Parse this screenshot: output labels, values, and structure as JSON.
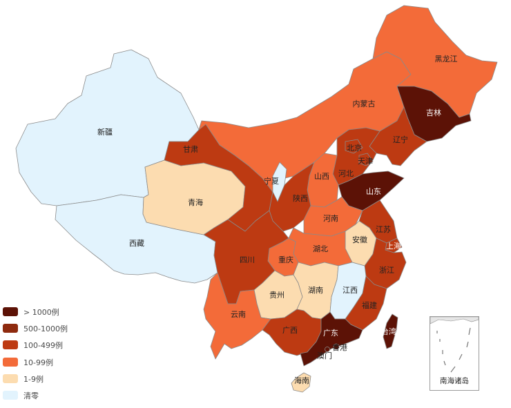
{
  "colors": {
    "gt1000": "#5c1206",
    "r500_1000": "#8e2a0e",
    "r100_499": "#bd3a12",
    "r10_99": "#f36b39",
    "r1_9": "#fcdcb0",
    "cleared": "#e2f3fd"
  },
  "legend": [
    {
      "label": "> 1000例",
      "color": "#5c1206"
    },
    {
      "label": "500-1000例",
      "color": "#8e2a0e"
    },
    {
      "label": "100-499例",
      "color": "#bd3a12"
    },
    {
      "label": "10-99例",
      "color": "#f36b39"
    },
    {
      "label": "1-9例",
      "color": "#fcdcb0"
    },
    {
      "label": "清零",
      "color": "#e2f3fd"
    }
  ],
  "provinces": [
    {
      "name": "新疆",
      "category": "cleared"
    },
    {
      "name": "西藏",
      "category": "cleared"
    },
    {
      "name": "青海",
      "category": "r1_9"
    },
    {
      "name": "甘肃",
      "category": "r100_499"
    },
    {
      "name": "内蒙古",
      "category": "r10_99"
    },
    {
      "name": "黑龙江",
      "category": "r10_99"
    },
    {
      "name": "吉林",
      "category": "gt1000"
    },
    {
      "name": "辽宁",
      "category": "r100_499"
    },
    {
      "name": "北京",
      "category": "r100_499"
    },
    {
      "name": "天津",
      "category": "r100_499"
    },
    {
      "name": "河北",
      "category": "r100_499"
    },
    {
      "name": "山西",
      "category": "r10_99"
    },
    {
      "name": "宁夏",
      "category": "cleared"
    },
    {
      "name": "陕西",
      "category": "r100_499"
    },
    {
      "name": "山东",
      "category": "gt1000"
    },
    {
      "name": "河南",
      "category": "r10_99"
    },
    {
      "name": "江苏",
      "category": "r100_499"
    },
    {
      "name": "安徽",
      "category": "r1_9"
    },
    {
      "name": "上海",
      "category": "r100_499"
    },
    {
      "name": "湖北",
      "category": "r10_99"
    },
    {
      "name": "重庆",
      "category": "r10_99"
    },
    {
      "name": "四川",
      "category": "r100_499"
    },
    {
      "name": "浙江",
      "category": "r100_499"
    },
    {
      "name": "贵州",
      "category": "r1_9"
    },
    {
      "name": "湖南",
      "category": "r1_9"
    },
    {
      "name": "江西",
      "category": "cleared"
    },
    {
      "name": "福建",
      "category": "r100_499"
    },
    {
      "name": "云南",
      "category": "r10_99"
    },
    {
      "name": "广西",
      "category": "r100_499"
    },
    {
      "name": "广东",
      "category": "gt1000"
    },
    {
      "name": "台湾",
      "category": "gt1000"
    },
    {
      "name": "香港",
      "category": "gt1000"
    },
    {
      "name": "澳门",
      "category": "gt1000"
    },
    {
      "name": "海南",
      "category": "r1_9"
    }
  ],
  "inset_label": "南海诸岛"
}
